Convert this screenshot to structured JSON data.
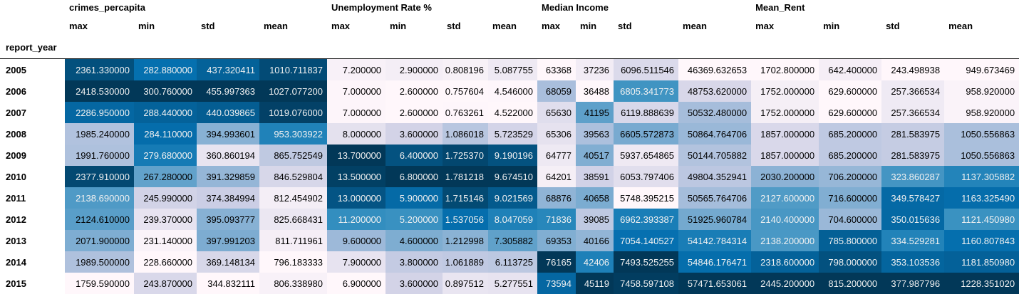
{
  "index_name": "report_year",
  "groups": [
    {
      "name": "crimes_percapita",
      "span": 4
    },
    {
      "name": "Unemployment Rate %",
      "span": 4
    },
    {
      "name": "Median Income",
      "span": 4
    },
    {
      "name": "Mean_Rent",
      "span": 4
    }
  ],
  "stats": [
    "max",
    "min",
    "std",
    "mean",
    "max",
    "min",
    "std",
    "mean",
    "max",
    "min",
    "std",
    "mean",
    "max",
    "min",
    "std",
    "mean"
  ],
  "colors": {
    "scale": [
      "#fff7fb",
      "#ece7f2",
      "#d0d1e6",
      "#a6bddb",
      "#74a9cf",
      "#3690c0",
      "#0570b0",
      "#045a8d",
      "#023858"
    ],
    "text_dark": "#000000",
    "text_light": "#f1f1f1"
  },
  "rows": [
    {
      "year": "2005",
      "cells": [
        "2361.330000",
        "282.880000",
        "437.320411",
        "1010.711837",
        "7.200000",
        "2.900000",
        "0.808196",
        "5.087755",
        "63368",
        "37236",
        "6096.511546",
        "46369.632653",
        "1702.800000",
        "642.400000",
        "243.498938",
        "949.673469"
      ]
    },
    {
      "year": "2006",
      "cells": [
        "2418.530000",
        "300.760000",
        "455.997363",
        "1027.077200",
        "7.000000",
        "2.600000",
        "0.757604",
        "4.546000",
        "68059",
        "36488",
        "6805.341773",
        "48753.620000",
        "1752.000000",
        "629.600000",
        "257.366534",
        "958.920000"
      ]
    },
    {
      "year": "2007",
      "cells": [
        "2286.950000",
        "288.440000",
        "440.039865",
        "1019.076000",
        "7.000000",
        "2.600000",
        "0.763261",
        "4.522000",
        "65630",
        "41195",
        "6119.888639",
        "50532.480000",
        "1752.000000",
        "629.600000",
        "257.366534",
        "958.920000"
      ]
    },
    {
      "year": "2008",
      "cells": [
        "1985.240000",
        "284.110000",
        "394.993601",
        "953.303922",
        "8.000000",
        "3.600000",
        "1.086018",
        "5.723529",
        "65306",
        "39563",
        "6605.572873",
        "50864.764706",
        "1857.000000",
        "685.200000",
        "281.583975",
        "1050.556863"
      ]
    },
    {
      "year": "2009",
      "cells": [
        "1991.760000",
        "279.680000",
        "360.860194",
        "865.752549",
        "13.700000",
        "6.400000",
        "1.725370",
        "9.190196",
        "64777",
        "40517",
        "5937.654865",
        "50144.705882",
        "1857.000000",
        "685.200000",
        "281.583975",
        "1050.556863"
      ]
    },
    {
      "year": "2010",
      "cells": [
        "2377.910000",
        "267.280000",
        "391.329859",
        "846.529804",
        "13.500000",
        "6.800000",
        "1.781218",
        "9.674510",
        "64201",
        "38591",
        "6053.797406",
        "49804.352941",
        "2030.200000",
        "706.200000",
        "323.860287",
        "1137.305882"
      ]
    },
    {
      "year": "2011",
      "cells": [
        "2138.690000",
        "245.990000",
        "374.384994",
        "812.454902",
        "13.000000",
        "5.900000",
        "1.715146",
        "9.021569",
        "68876",
        "40658",
        "5748.395215",
        "50565.764706",
        "2127.600000",
        "716.600000",
        "349.578427",
        "1163.325490"
      ]
    },
    {
      "year": "2012",
      "cells": [
        "2124.610000",
        "239.370000",
        "395.093777",
        "825.668431",
        "11.200000",
        "5.200000",
        "1.537056",
        "8.047059",
        "71836",
        "39085",
        "6962.393387",
        "51925.960784",
        "2140.400000",
        "704.600000",
        "350.015636",
        "1121.450980"
      ]
    },
    {
      "year": "2013",
      "cells": [
        "2071.900000",
        "231.140000",
        "397.991203",
        "811.711961",
        "9.600000",
        "4.600000",
        "1.212998",
        "7.305882",
        "69353",
        "40166",
        "7054.140527",
        "54142.784314",
        "2138.200000",
        "785.800000",
        "334.529281",
        "1160.807843"
      ]
    },
    {
      "year": "2014",
      "cells": [
        "1989.500000",
        "228.660000",
        "369.148134",
        "796.183333",
        "7.900000",
        "3.800000",
        "1.061889",
        "6.113725",
        "76165",
        "42406",
        "7493.525255",
        "54846.176471",
        "2318.600000",
        "798.000000",
        "353.103536",
        "1181.850980"
      ]
    },
    {
      "year": "2015",
      "cells": [
        "1759.590000",
        "243.870000",
        "344.832111",
        "806.338980",
        "6.900000",
        "3.600000",
        "0.897512",
        "5.277551",
        "73594",
        "45119",
        "7458.597108",
        "57471.653061",
        "2445.200000",
        "815.200000",
        "377.987796",
        "1228.351020"
      ]
    }
  ]
}
